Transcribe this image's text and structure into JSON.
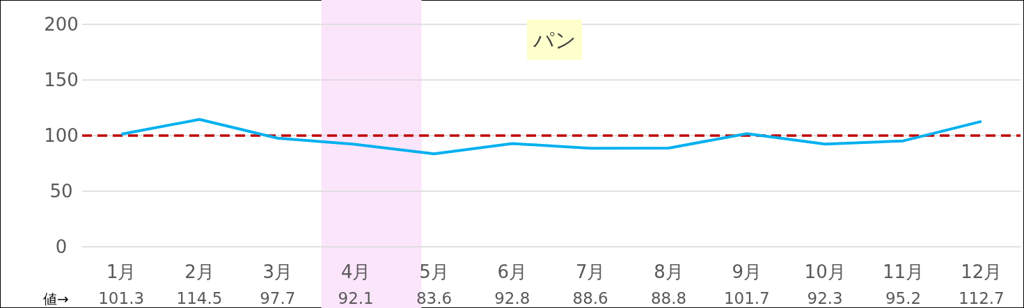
{
  "chart_data": {
    "type": "line",
    "title": "パン",
    "categories": [
      "1月",
      "2月",
      "3月",
      "4月",
      "5月",
      "6月",
      "7月",
      "8月",
      "9月",
      "10月",
      "11月",
      "12月"
    ],
    "series": [
      {
        "color": "#00b0f0",
        "values": [
          101.3,
          114.5,
          97.7,
          92.1,
          83.6,
          92.8,
          88.6,
          88.8,
          101.7,
          92.3,
          95.2,
          112.7
        ]
      }
    ],
    "ylim": [
      0,
      200
    ],
    "yticks": [
      0,
      50,
      100,
      150,
      200
    ],
    "grid": "y",
    "marker": "none",
    "line_style": "solid",
    "data_labels": true,
    "annotations": [
      "値→"
    ],
    "ref_lines": [
      {
        "axis": "y",
        "value": 100,
        "color": "#c00000",
        "line_style": "dashed"
      }
    ],
    "bands": [
      {
        "axis": "x",
        "from": "4月",
        "to": "5月",
        "color": "#fbe5fb"
      }
    ]
  }
}
